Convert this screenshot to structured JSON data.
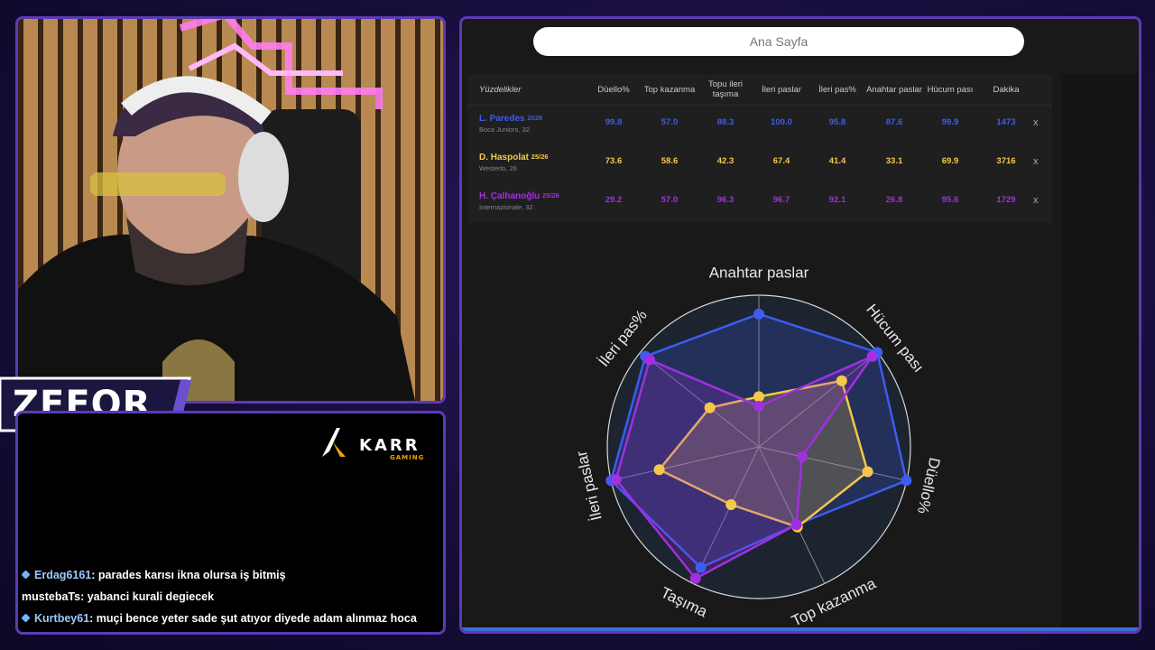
{
  "overlay": {
    "streamer": "ZEFOR",
    "logo": "KARR",
    "logo_sub": "GAMING"
  },
  "chat": [
    {
      "user": "Erdag6161",
      "text": ": parades karısı ikna olursa iş bitmiş"
    },
    {
      "user": "mustebaTs",
      "text": ": yabanci kurali degiecek"
    },
    {
      "user": "Kurtbey61",
      "text": ": muçi bence yeter sade şut atıyor diyede adam alınmaz hoca"
    }
  ],
  "app": {
    "search": "Ana Sayfa"
  },
  "table": {
    "header": [
      "Yüzdelikler",
      "Düello%",
      "Top kazanma",
      "Topu ileri taşıma",
      "İleri paslar",
      "İleri pas%",
      "Anahtar paslar",
      "Hücum pası",
      "Dakika"
    ],
    "rows": [
      {
        "name": "L. Paredes",
        "season": "2026",
        "club": "Boca Juniors, 32",
        "cells": [
          "99.8",
          "57.0",
          "88.3",
          "100.0",
          "95.8",
          "87.6",
          "99.9",
          "1473"
        ],
        "remove": "x"
      },
      {
        "name": "D. Haspolat",
        "season": "25/26",
        "club": "Westerlo, 26",
        "cells": [
          "73.6",
          "58.6",
          "42.3",
          "67.4",
          "41.4",
          "33.1",
          "69.9",
          "3716"
        ],
        "remove": "x"
      },
      {
        "name": "H. Çalhanoğlu",
        "season": "25/26",
        "club": "Internazionale, 32",
        "cells": [
          "29.2",
          "57.0",
          "96.3",
          "96.7",
          "92.1",
          "26.8",
          "95.6",
          "1729"
        ],
        "remove": "x"
      }
    ]
  },
  "chart_data": {
    "type": "radar",
    "categories": [
      "Anahtar paslar",
      "Hücum pası",
      "Düello%",
      "Top kazanma",
      "Taşıma",
      "İleri paslar",
      "İleri pas%"
    ],
    "series": [
      {
        "color": "#3d5cf0",
        "values": [
          87.6,
          99.9,
          99.8,
          57.0,
          88.3,
          100.0,
          95.8
        ]
      },
      {
        "color": "#f5c84a",
        "values": [
          33.1,
          69.9,
          73.6,
          58.6,
          42.3,
          67.4,
          41.4
        ]
      },
      {
        "color": "#a22fe0",
        "values": [
          26.8,
          95.6,
          29.2,
          57.0,
          96.3,
          96.7,
          92.1
        ]
      }
    ],
    "rlim": [
      0,
      100
    ],
    "grid": true
  }
}
